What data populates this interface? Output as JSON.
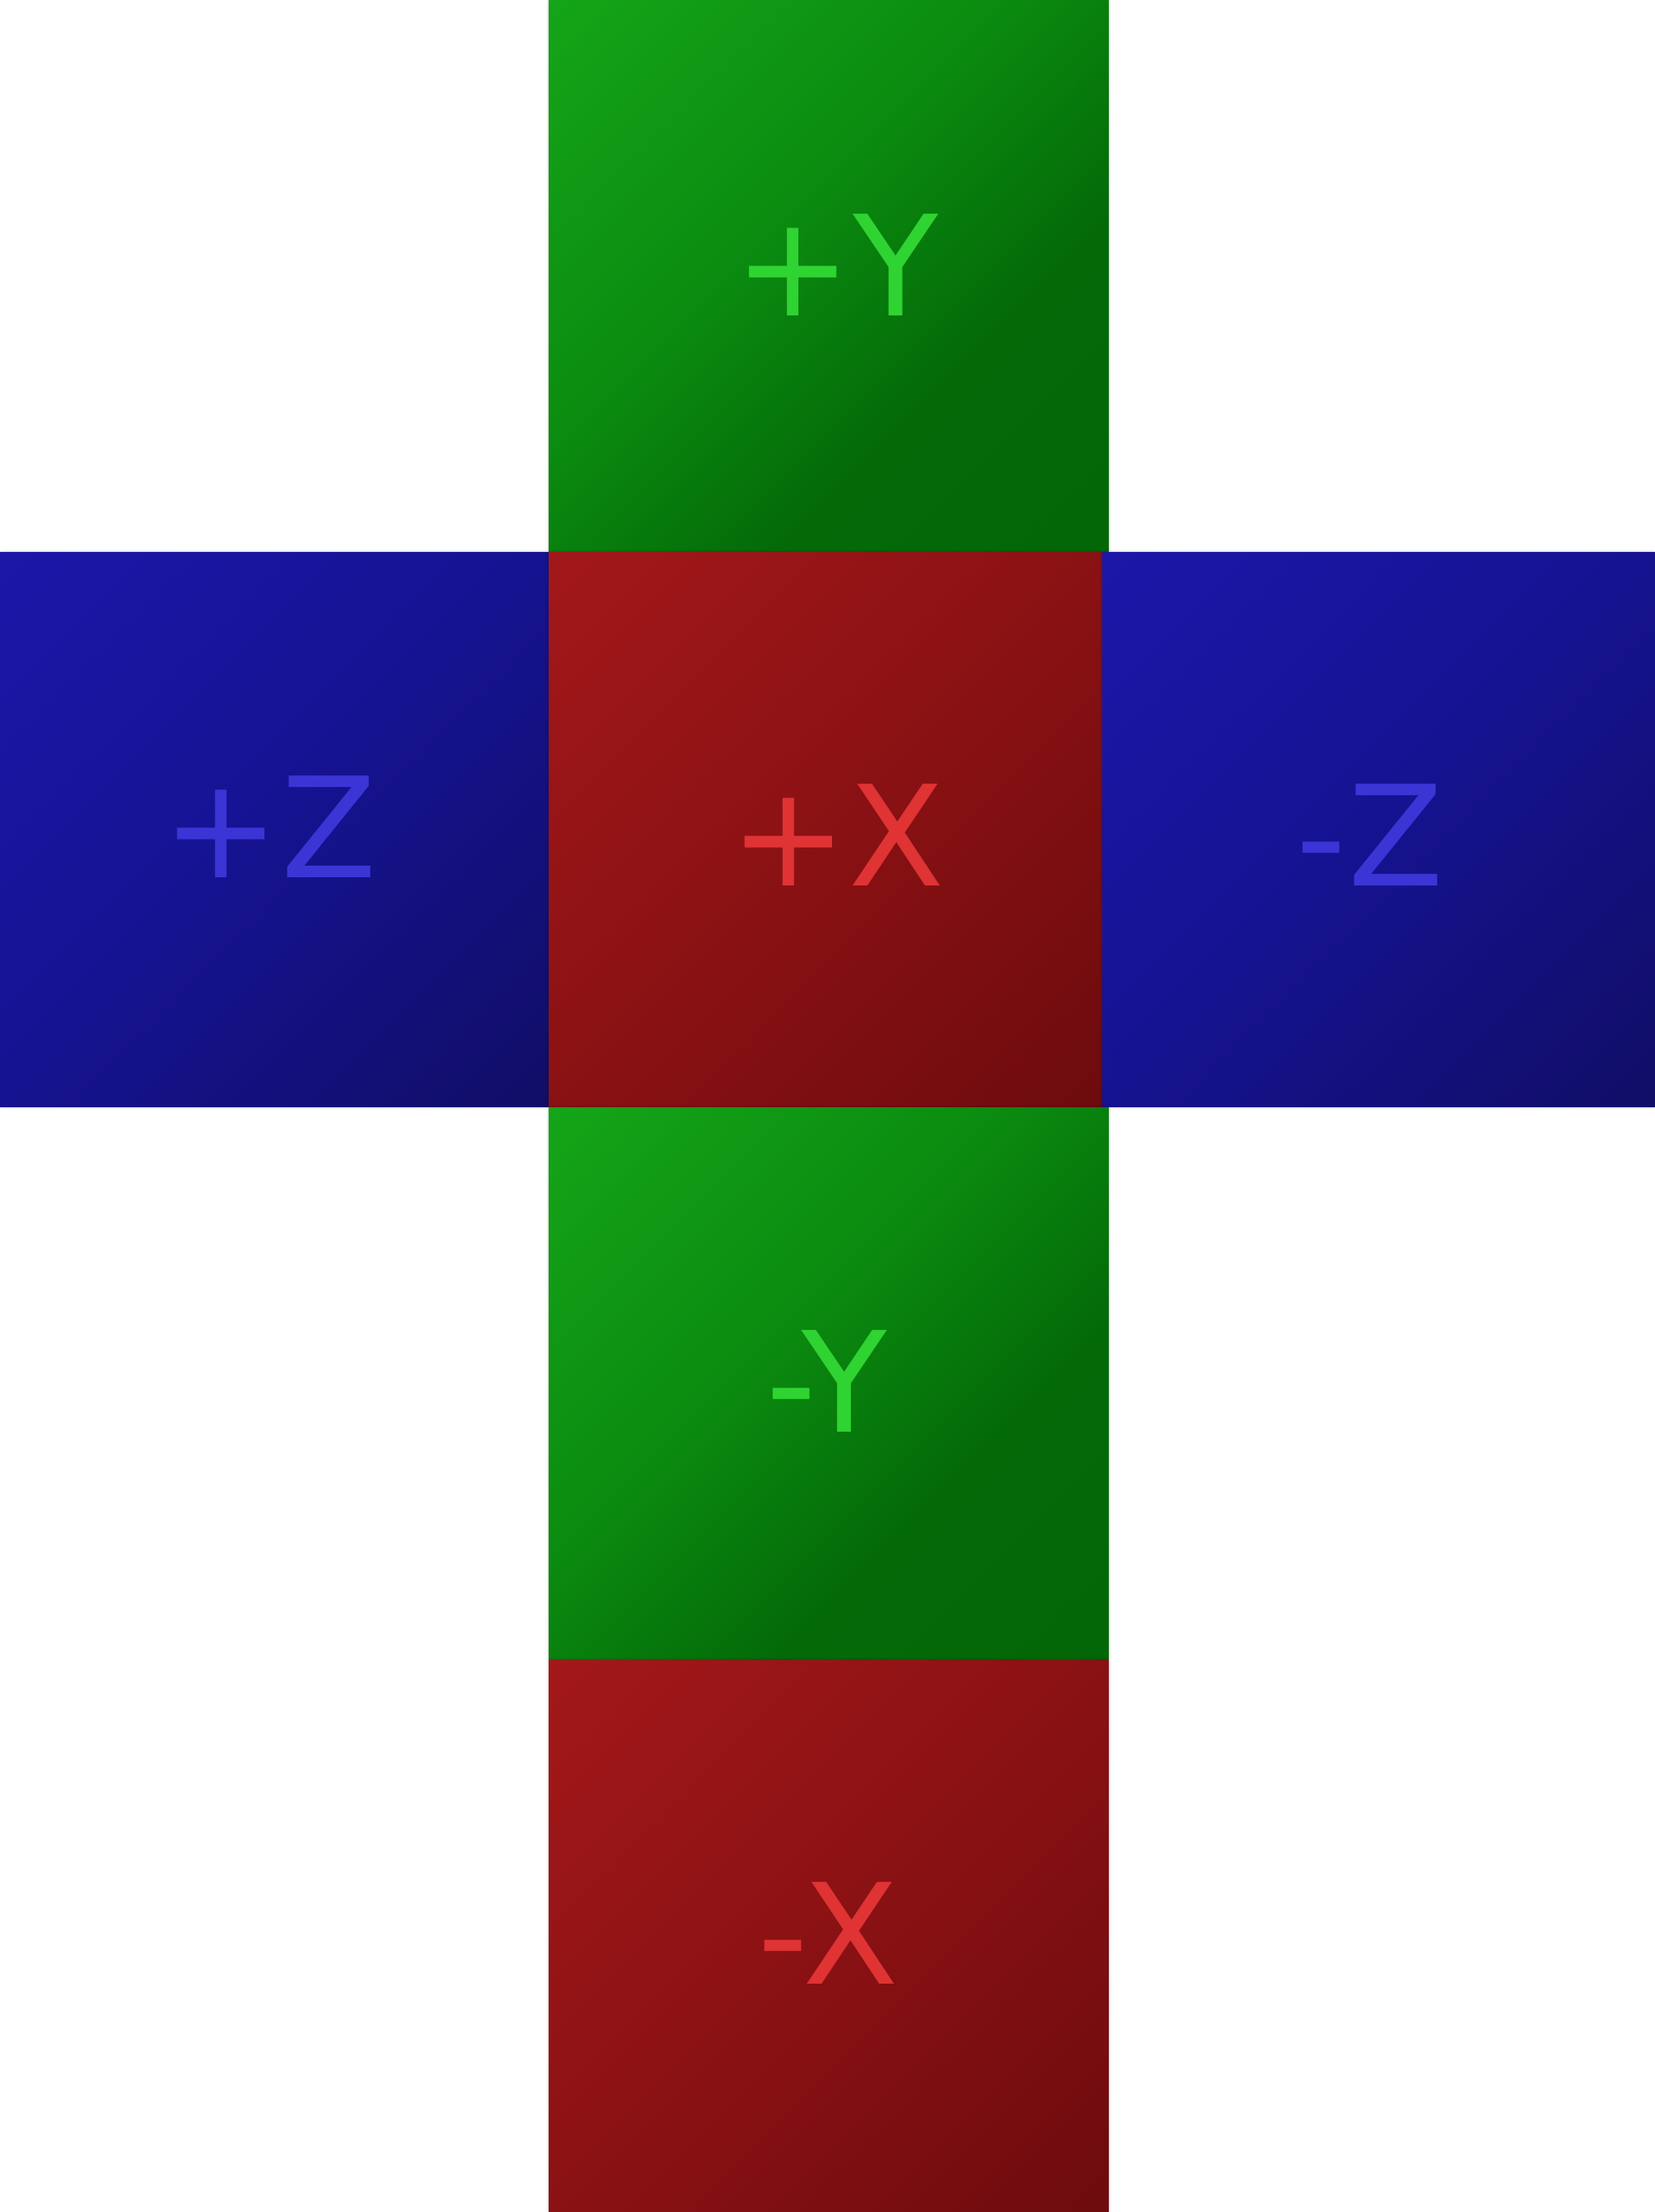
{
  "faces": {
    "pos_y": {
      "label": "+Y",
      "color": "#0b8c10"
    },
    "pos_z": {
      "label": "+Z",
      "color": "#161394"
    },
    "pos_x": {
      "label": "+X",
      "color": "#8d1214"
    },
    "neg_z": {
      "label": "-Z",
      "color": "#161394"
    },
    "neg_y": {
      "label": "-Y",
      "color": "#0b8c10"
    },
    "neg_x": {
      "label": "-X",
      "color": "#8d1214"
    }
  }
}
